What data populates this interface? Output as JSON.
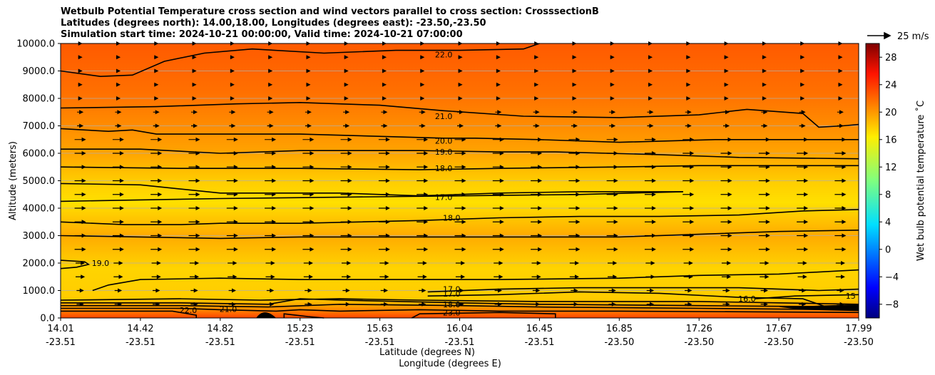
{
  "chart_data": {
    "type": "contour",
    "title_lines": [
      "Wetbulb Potential Temperature cross section and wind vectors parallel to cross section: CrosssectionB",
      "Latitudes (degrees north): 14.00,18.00, Longitudes (degrees east): -23.50,-23.50",
      "Simulation start time: 2024-10-21 00:00:00, Valid time: 2024-10-21 07:00:00"
    ],
    "ylabel": "Altitude (meters)",
    "xlabel_1": "Latitude (degrees N)",
    "xlabel_2": "Longitude (degrees E)",
    "ylim": [
      0,
      10000
    ],
    "y_ticks": [
      "0.0",
      "1000.0",
      "2000.0",
      "3000.0",
      "4000.0",
      "5000.0",
      "6000.0",
      "7000.0",
      "8000.0",
      "9000.0",
      "10000.0"
    ],
    "x_ticks": [
      {
        "lat": "14.01",
        "lon": "-23.51"
      },
      {
        "lat": "14.42",
        "lon": "-23.51"
      },
      {
        "lat": "14.82",
        "lon": "-23.51"
      },
      {
        "lat": "15.23",
        "lon": "-23.51"
      },
      {
        "lat": "15.63",
        "lon": "-23.51"
      },
      {
        "lat": "16.04",
        "lon": "-23.51"
      },
      {
        "lat": "16.45",
        "lon": "-23.51"
      },
      {
        "lat": "16.85",
        "lon": "-23.50"
      },
      {
        "lat": "17.26",
        "lon": "-23.50"
      },
      {
        "lat": "17.67",
        "lon": "-23.50"
      },
      {
        "lat": "17.99",
        "lon": "-23.50"
      }
    ],
    "colorbar_label": "Wet bulb potential temperature ˚C",
    "colorbar_ticks": [
      "28",
      "24",
      "20",
      "16",
      "12",
      "8",
      "4",
      "0",
      "−4",
      "−8"
    ],
    "colorbar_range": [
      -10,
      30
    ],
    "vector_key_label": "25 m/s",
    "contour_labels": [
      {
        "text": "22.0",
        "temp": 22,
        "alt": 9600,
        "frac": 0.48
      },
      {
        "text": "21.0",
        "temp": 21,
        "alt": 7350,
        "frac": 0.48
      },
      {
        "text": "20.0",
        "temp": 20,
        "alt": 6450,
        "frac": 0.48
      },
      {
        "text": "19.0",
        "temp": 19,
        "alt": 6050,
        "frac": 0.48
      },
      {
        "text": "18.0",
        "temp": 18,
        "alt": 5450,
        "frac": 0.48
      },
      {
        "text": "17.0",
        "temp": 17,
        "alt": 4400,
        "frac": 0.48
      },
      {
        "text": "18.0",
        "temp": 18,
        "alt": 3650,
        "frac": 0.49
      },
      {
        "text": "19.0",
        "temp": 19,
        "alt": 2000,
        "frac": 0.05
      },
      {
        "text": "17.0",
        "temp": 17,
        "alt": 1050,
        "frac": 0.49
      },
      {
        "text": "17.0",
        "temp": 17,
        "alt": 880,
        "frac": 0.49
      },
      {
        "text": "18.0",
        "temp": 18,
        "alt": 500,
        "frac": 0.49
      },
      {
        "text": "23.0",
        "temp": 23,
        "alt": 200,
        "frac": 0.49
      },
      {
        "text": "22.0",
        "temp": 22,
        "alt": 280,
        "frac": 0.16
      },
      {
        "text": "21.0",
        "temp": 21,
        "alt": 320,
        "frac": 0.21
      },
      {
        "text": "16.0",
        "temp": 16,
        "alt": 700,
        "frac": 0.86
      },
      {
        "text": "15",
        "temp": 15,
        "alt": 800,
        "frac": 0.99
      }
    ]
  }
}
